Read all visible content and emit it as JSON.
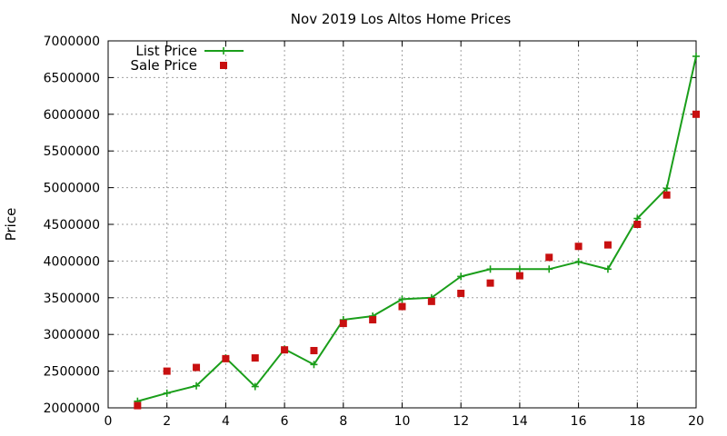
{
  "chart_data": {
    "type": "line",
    "title": "Nov 2019 Los Altos Home Prices",
    "xlabel": "",
    "ylabel": "Price",
    "xlim": [
      0,
      20
    ],
    "ylim": [
      2000000,
      7000000
    ],
    "x_ticks": [
      "0",
      "2",
      "4",
      "6",
      "8",
      "10",
      "12",
      "14",
      "16",
      "18",
      "20"
    ],
    "y_ticks": [
      "2000000",
      "2500000",
      "3000000",
      "3500000",
      "4000000",
      "4500000",
      "5000000",
      "5500000",
      "6000000",
      "6500000",
      "7000000"
    ],
    "grid": true,
    "legend_position": "top-left",
    "x": [
      1,
      2,
      3,
      4,
      5,
      6,
      7,
      8,
      9,
      10,
      11,
      12,
      13,
      14,
      15,
      16,
      17,
      18,
      19,
      20
    ],
    "series": [
      {
        "name": "List Price",
        "style": "lines-points",
        "marker": "plus",
        "color": "#1a9e1a",
        "values": [
          2090000,
          2200000,
          2300000,
          2680000,
          2290000,
          2800000,
          2590000,
          3200000,
          3250000,
          3480000,
          3500000,
          3790000,
          3890000,
          3890000,
          3890000,
          3990000,
          3890000,
          4580000,
          4990000,
          6790000
        ]
      },
      {
        "name": "Sale Price",
        "style": "points",
        "marker": "square",
        "color": "#c81010",
        "values": [
          2030000,
          2500000,
          2550000,
          2670000,
          2680000,
          2790000,
          2780000,
          3150000,
          3200000,
          3380000,
          3450000,
          3560000,
          3700000,
          3800000,
          4050000,
          4200000,
          4220000,
          4500000,
          4900000,
          6000000
        ]
      }
    ]
  }
}
